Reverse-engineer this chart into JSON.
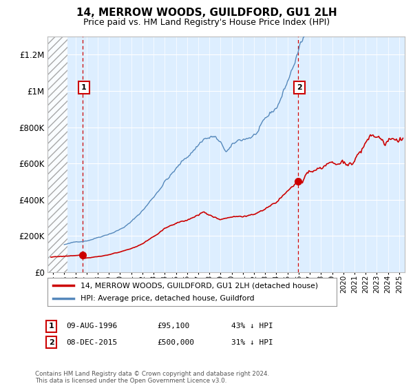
{
  "title": "14, MERROW WOODS, GUILDFORD, GU1 2LH",
  "subtitle": "Price paid vs. HM Land Registry's House Price Index (HPI)",
  "legend_line1": "14, MERROW WOODS, GUILDFORD, GU1 2LH (detached house)",
  "legend_line2": "HPI: Average price, detached house, Guildford",
  "ann1_label": "1",
  "ann1_date": "09-AUG-1996",
  "ann1_price": "£95,100",
  "ann1_hpi": "43% ↓ HPI",
  "ann1_x": 1996.62,
  "ann1_y": 95100,
  "ann2_label": "2",
  "ann2_date": "08-DEC-2015",
  "ann2_price": "£500,000",
  "ann2_hpi": "31% ↓ HPI",
  "ann2_x": 2015.92,
  "ann2_y": 500000,
  "footer": "Contains HM Land Registry data © Crown copyright and database right 2024.\nThis data is licensed under the Open Government Licence v3.0.",
  "ylim": [
    0,
    1300000
  ],
  "xlim_left": 1993.5,
  "xlim_right": 2025.5,
  "hatch_end_x": 1995.3,
  "red_color": "#cc0000",
  "blue_color": "#5588bb",
  "box_color": "#cc0000",
  "chart_bg": "#ddeeff",
  "yticks": [
    0,
    200000,
    400000,
    600000,
    800000,
    1000000,
    1200000
  ],
  "ytick_labels": [
    "£0",
    "£200K",
    "£400K",
    "£600K",
    "£800K",
    "£1M",
    "£1.2M"
  ],
  "xtick_years": [
    1994,
    1995,
    1996,
    1997,
    1998,
    1999,
    2000,
    2001,
    2002,
    2003,
    2004,
    2005,
    2006,
    2007,
    2008,
    2009,
    2010,
    2011,
    2012,
    2013,
    2014,
    2015,
    2016,
    2017,
    2018,
    2019,
    2020,
    2021,
    2022,
    2023,
    2024,
    2025
  ]
}
